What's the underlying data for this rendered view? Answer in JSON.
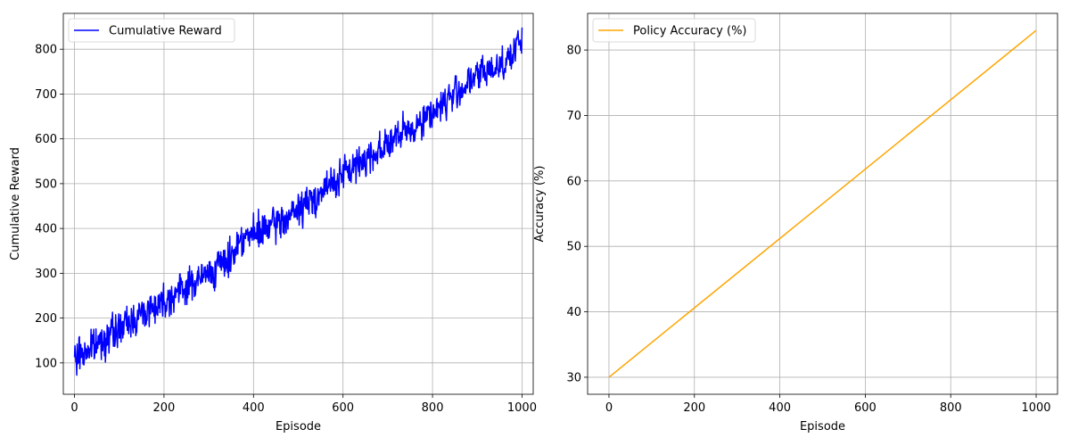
{
  "chart_data": [
    {
      "type": "line",
      "title": "",
      "xlabel": "Episode",
      "ylabel": "Cumulative Reward",
      "xlim": [
        -25,
        1025
      ],
      "ylim": [
        30,
        880
      ],
      "xticks": [
        0,
        200,
        400,
        600,
        800,
        1000
      ],
      "yticks": [
        100,
        200,
        300,
        400,
        500,
        600,
        700,
        800
      ],
      "grid": true,
      "legend_position": "upper left",
      "series": [
        {
          "name": "Cumulative Reward",
          "color": "#0000ff",
          "noisy": true,
          "x": [
            0,
            5,
            10,
            20,
            30,
            40,
            50,
            60,
            80,
            100,
            120,
            150,
            200,
            250,
            300,
            350,
            370,
            400,
            450,
            500,
            550,
            600,
            650,
            700,
            750,
            800,
            850,
            900,
            950,
            980,
            1000
          ],
          "y": [
            115,
            100,
            125,
            120,
            130,
            135,
            140,
            150,
            162,
            175,
            190,
            210,
            240,
            270,
            300,
            335,
            380,
            385,
            410,
            440,
            480,
            520,
            555,
            590,
            620,
            660,
            700,
            740,
            765,
            790,
            825
          ]
        }
      ]
    },
    {
      "type": "line",
      "title": "",
      "xlabel": "Episode",
      "ylabel": "Accuracy (%)",
      "xlim": [
        -50,
        1050
      ],
      "ylim": [
        27.4,
        85.6
      ],
      "xticks": [
        0,
        200,
        400,
        600,
        800,
        1000
      ],
      "yticks": [
        30,
        40,
        50,
        60,
        70,
        80
      ],
      "grid": true,
      "legend_position": "upper left",
      "series": [
        {
          "name": "Policy Accuracy (%)",
          "color": "#ffa500",
          "noisy": false,
          "x": [
            0,
            1000
          ],
          "y": [
            30,
            83
          ]
        }
      ]
    }
  ]
}
